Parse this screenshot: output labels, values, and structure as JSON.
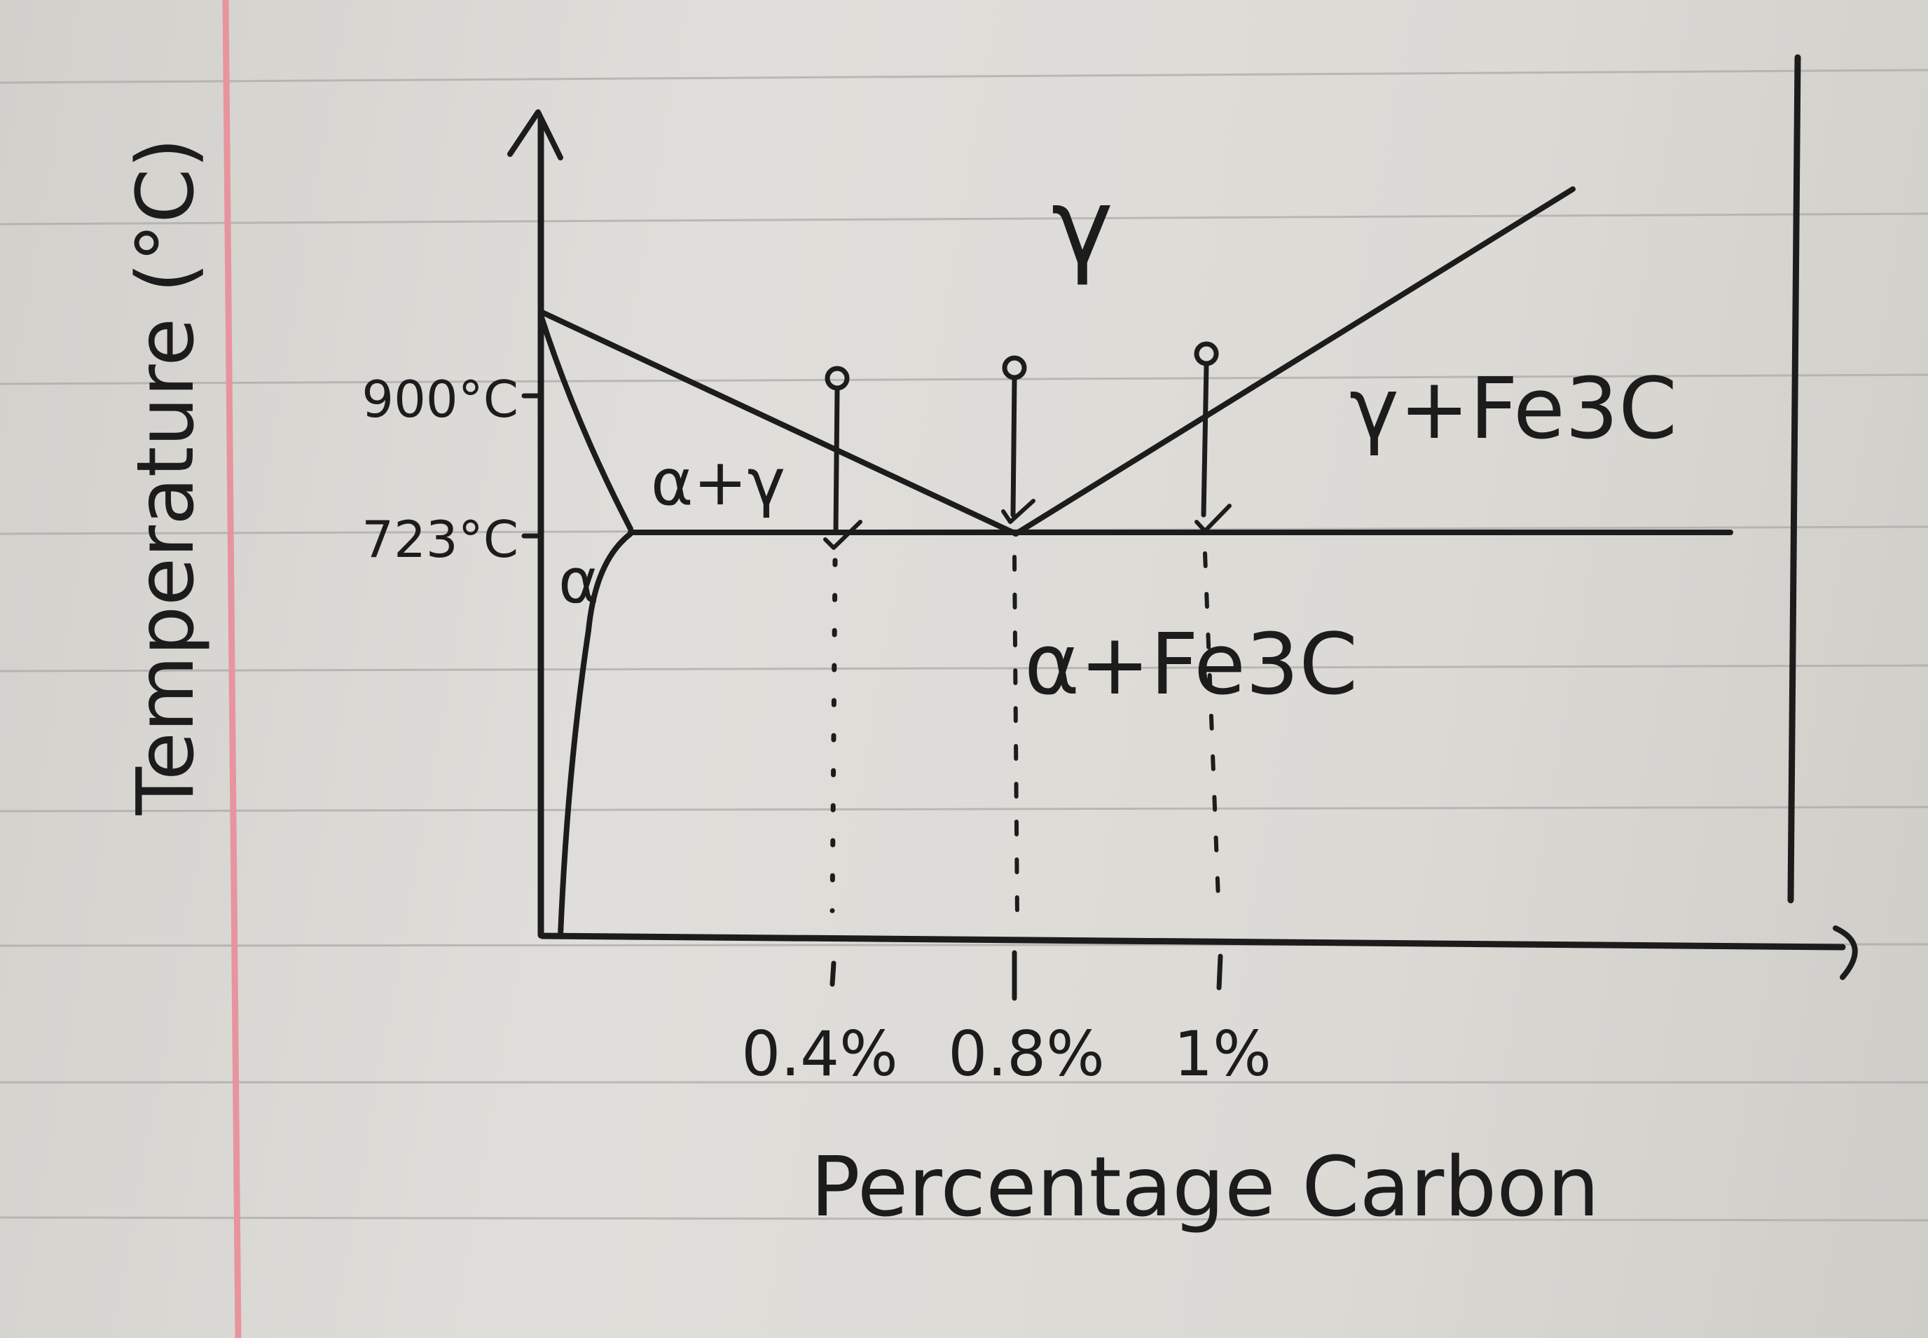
{
  "diagram": {
    "axes": {
      "y_label": "Temperature (°C)",
      "x_label": "Percentage Carbon"
    },
    "y_ticks": [
      {
        "label": "900°C"
      },
      {
        "label": "723°C"
      }
    ],
    "x_ticks": [
      {
        "label": "0.4%"
      },
      {
        "label": "0.8%"
      },
      {
        "label": "1%"
      }
    ],
    "regions": {
      "gamma": "γ",
      "alpha_gamma": "α+γ",
      "alpha": "α",
      "gamma_fe3c": "γ+Fe3C",
      "alpha_fe3c": "α+Fe3C"
    }
  }
}
